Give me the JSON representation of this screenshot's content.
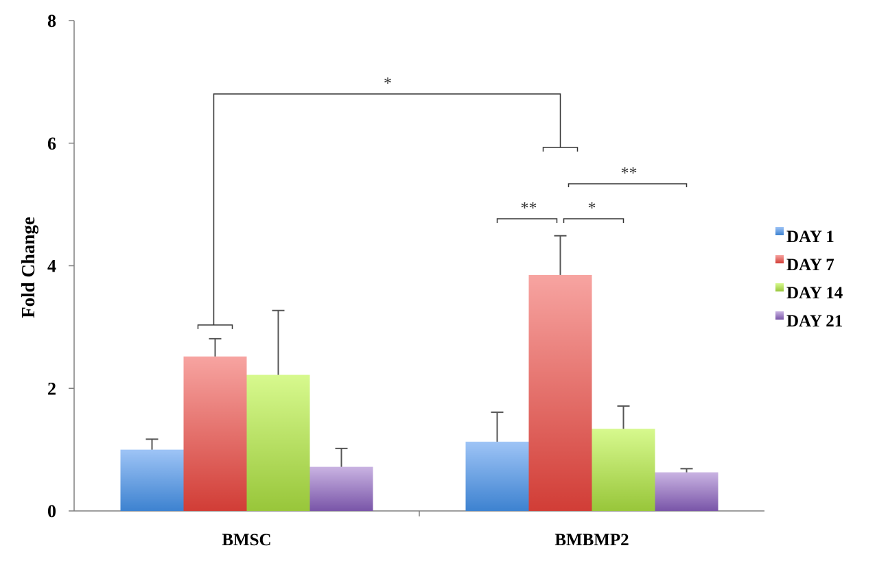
{
  "chart_data": {
    "type": "bar",
    "title": "",
    "xlabel": "",
    "ylabel": "Fold Change",
    "ylim": [
      0,
      8
    ],
    "yticks": [
      0,
      2,
      4,
      6,
      8
    ],
    "grid": false,
    "legend_position": "right",
    "categories": [
      "BMSC",
      "BMBMP2"
    ],
    "series": [
      {
        "name": "DAY 1",
        "color_top": "#9ec4f6",
        "color_bottom": "#3d82d0",
        "values": [
          1.0,
          1.13
        ],
        "errors": [
          0.17,
          0.48
        ]
      },
      {
        "name": "DAY 7",
        "color_top": "#f7a4a1",
        "color_bottom": "#d13d36",
        "values": [
          2.52,
          3.85
        ],
        "errors": [
          0.29,
          0.64
        ]
      },
      {
        "name": "DAY 14",
        "color_top": "#d7f98e",
        "color_bottom": "#98c63a",
        "values": [
          2.22,
          1.34
        ],
        "errors": [
          1.05,
          0.37
        ]
      },
      {
        "name": "DAY 21",
        "color_top": "#c9b3e2",
        "color_bottom": "#7955a8",
        "values": [
          0.72,
          0.63
        ],
        "errors": [
          0.3,
          0.06
        ]
      }
    ],
    "annotations": [
      {
        "label": "*",
        "from": "BMSC DAY 7",
        "to": "BMBMP2 DAY 7"
      },
      {
        "label": "**",
        "from": "BMBMP2 DAY 1",
        "to": "BMBMP2 DAY 7"
      },
      {
        "label": "*",
        "from": "BMBMP2 DAY 7",
        "to": "BMBMP2 DAY 14"
      },
      {
        "label": "**",
        "from": "BMBMP2 DAY 7",
        "to": "BMBMP2 DAY 21"
      }
    ]
  }
}
